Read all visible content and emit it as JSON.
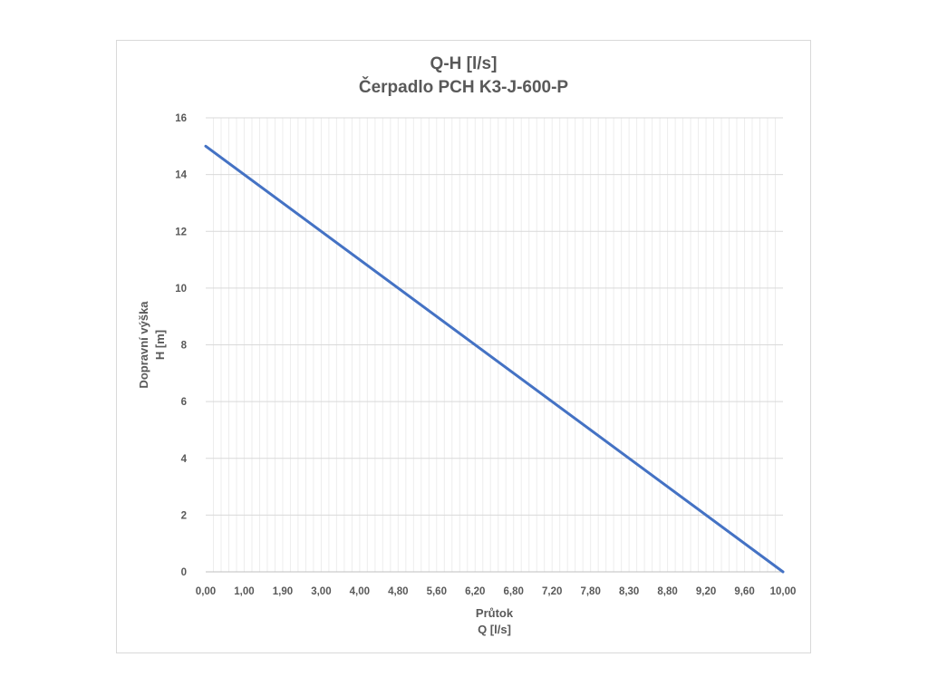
{
  "chart_data": {
    "type": "line",
    "title": "Q-H  [l/s]",
    "subtitle": "Čerpadlo PCH K3-J-600-P",
    "xlabel": [
      "Průtok",
      "Q [l/s]"
    ],
    "ylabel": [
      "Dopravní výška",
      "H [m]"
    ],
    "x_tick_labels": [
      "0,00",
      "1,00",
      "1,90",
      "3,00",
      "4,00",
      "4,80",
      "5,60",
      "6,20",
      "6,80",
      "7,20",
      "7,80",
      "8,30",
      "8,80",
      "9,20",
      "9,60",
      "10,00"
    ],
    "y_ticks": [
      0,
      2,
      4,
      6,
      8,
      10,
      12,
      14,
      16
    ],
    "ylim": [
      0,
      16
    ],
    "minor_x_divisions": 75,
    "grid": true,
    "color": "#4472C4",
    "series": [
      {
        "x": [
          0,
          10
        ],
        "y": [
          15,
          0
        ]
      }
    ]
  }
}
